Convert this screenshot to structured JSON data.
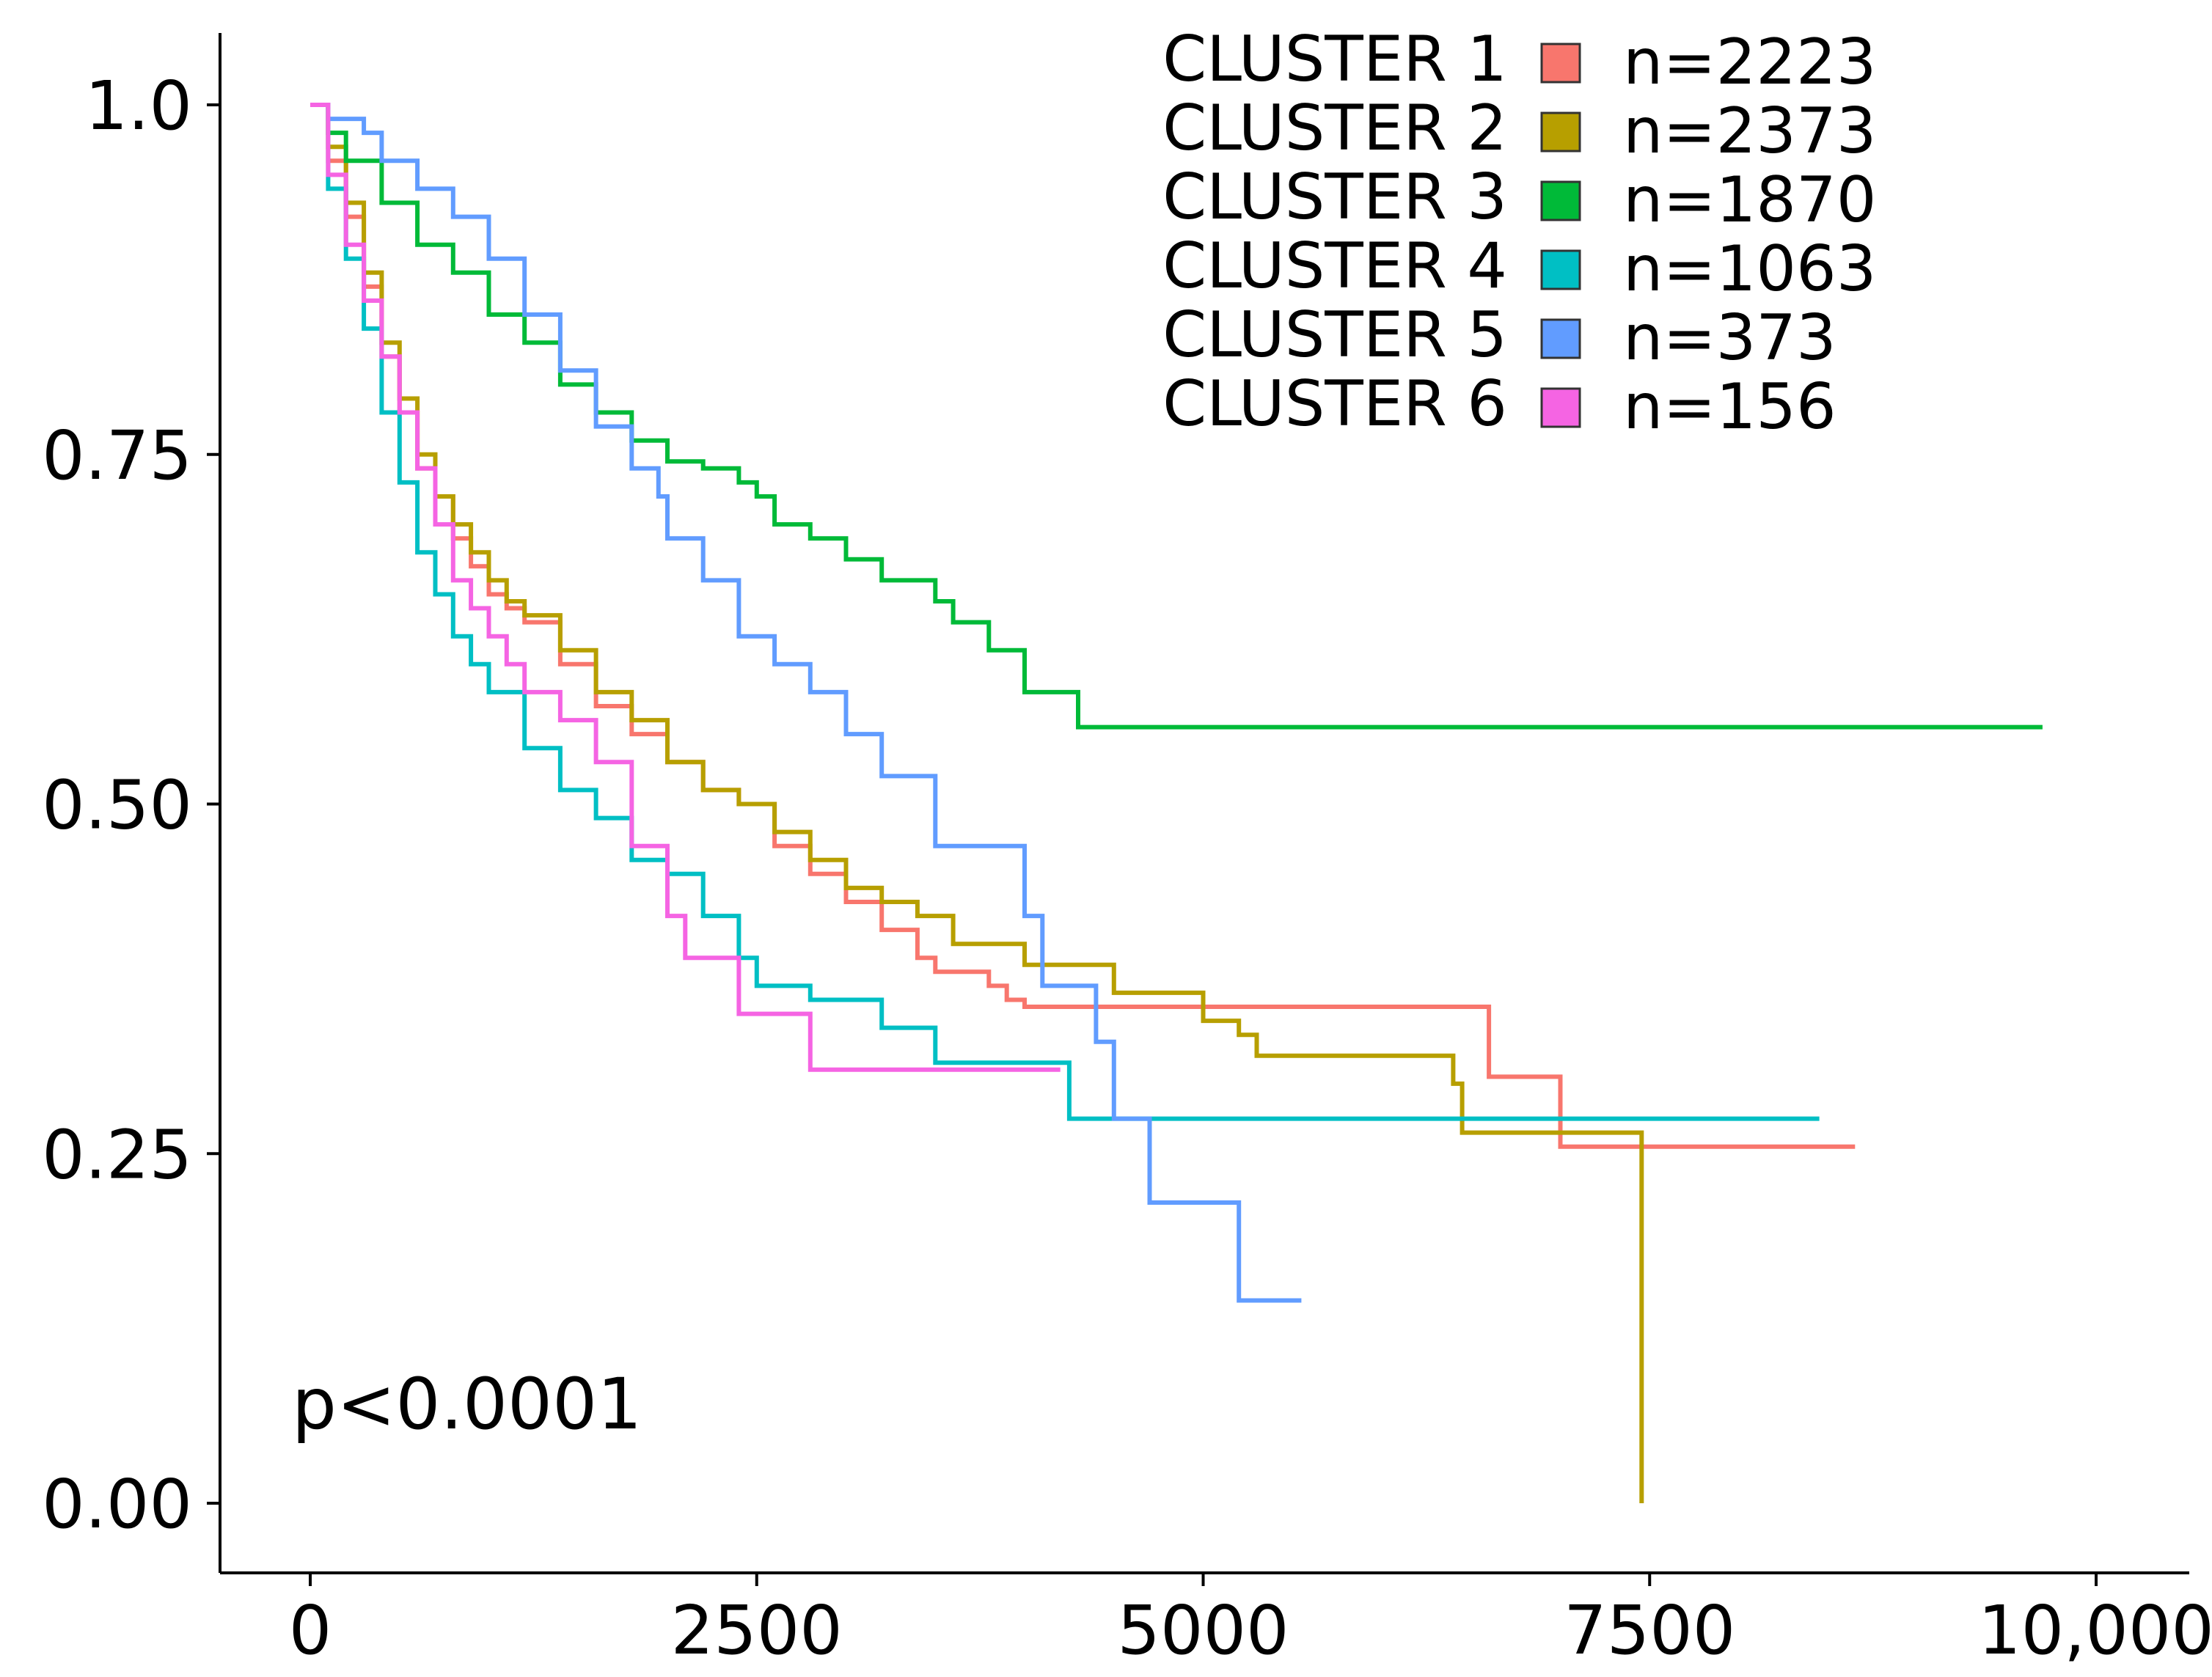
{
  "chart_data": {
    "type": "line",
    "title": "",
    "xlabel": "",
    "ylabel": "",
    "xlim": [
      -500,
      10500
    ],
    "ylim": [
      -0.1,
      1.05
    ],
    "x_ticks": [
      0,
      2500,
      5000,
      7500,
      10000
    ],
    "x_tick_labels": [
      "0",
      "2500",
      "5000",
      "7500",
      "10,000"
    ],
    "y_ticks": [
      0,
      0.25,
      0.5,
      0.75,
      1.0
    ],
    "y_tick_labels": [
      "0.00",
      "0.25",
      "0.50",
      "0.75",
      "1.0"
    ],
    "grid": false,
    "legend_position": "top-right",
    "annotation": "p<0.0001",
    "series": [
      {
        "name": "CLUSTER 1",
        "count_label": "n=2223",
        "color": "#F8766D",
        "x": [
          0,
          100,
          200,
          300,
          400,
          500,
          600,
          700,
          800,
          900,
          1000,
          1100,
          1200,
          1400,
          1600,
          1800,
          2000,
          2200,
          2400,
          2600,
          2800,
          3000,
          3200,
          3400,
          3500,
          3800,
          3900,
          4000,
          6600,
          7000,
          8650
        ],
        "y": [
          1.0,
          0.96,
          0.92,
          0.87,
          0.82,
          0.78,
          0.74,
          0.72,
          0.69,
          0.67,
          0.65,
          0.64,
          0.63,
          0.6,
          0.57,
          0.55,
          0.53,
          0.51,
          0.5,
          0.47,
          0.45,
          0.43,
          0.41,
          0.39,
          0.38,
          0.37,
          0.36,
          0.355,
          0.305,
          0.255,
          0.255
        ]
      },
      {
        "name": "CLUSTER 2",
        "count_label": "n=2373",
        "color": "#B79F00",
        "x": [
          0,
          100,
          200,
          300,
          400,
          500,
          600,
          700,
          800,
          900,
          1000,
          1100,
          1200,
          1400,
          1600,
          1800,
          2000,
          2200,
          2400,
          2600,
          2800,
          3000,
          3200,
          3400,
          3600,
          4000,
          4500,
          5000,
          5200,
          5300,
          6400,
          6450,
          7450,
          7455
        ],
        "y": [
          1.0,
          0.97,
          0.93,
          0.88,
          0.83,
          0.79,
          0.75,
          0.72,
          0.7,
          0.68,
          0.66,
          0.645,
          0.635,
          0.61,
          0.58,
          0.56,
          0.53,
          0.51,
          0.5,
          0.48,
          0.46,
          0.44,
          0.43,
          0.42,
          0.4,
          0.385,
          0.365,
          0.345,
          0.335,
          0.32,
          0.3,
          0.265,
          0.265,
          0.0
        ]
      },
      {
        "name": "CLUSTER 3",
        "count_label": "n=1870",
        "color": "#00BA38",
        "x": [
          0,
          100,
          200,
          400,
          600,
          800,
          1000,
          1200,
          1400,
          1600,
          1800,
          2000,
          2200,
          2400,
          2500,
          2600,
          2800,
          3000,
          3200,
          3500,
          3600,
          3800,
          4000,
          4300,
          9700
        ],
        "y": [
          1.0,
          0.98,
          0.96,
          0.93,
          0.9,
          0.88,
          0.85,
          0.83,
          0.8,
          0.78,
          0.76,
          0.745,
          0.74,
          0.73,
          0.72,
          0.7,
          0.69,
          0.675,
          0.66,
          0.645,
          0.63,
          0.61,
          0.58,
          0.555,
          0.555
        ]
      },
      {
        "name": "CLUSTER 4",
        "count_label": "n=1063",
        "color": "#00BFC4",
        "x": [
          0,
          100,
          200,
          300,
          400,
          500,
          600,
          700,
          800,
          900,
          1000,
          1200,
          1400,
          1600,
          1800,
          2000,
          2200,
          2400,
          2500,
          2800,
          3200,
          3500,
          4250,
          8450
        ],
        "y": [
          1.0,
          0.94,
          0.89,
          0.84,
          0.78,
          0.73,
          0.68,
          0.65,
          0.62,
          0.6,
          0.58,
          0.54,
          0.51,
          0.49,
          0.46,
          0.45,
          0.42,
          0.39,
          0.37,
          0.36,
          0.34,
          0.315,
          0.275,
          0.275
        ]
      },
      {
        "name": "CLUSTER 5",
        "count_label": "n=373",
        "color": "#619CFF",
        "x": [
          0,
          100,
          300,
          400,
          600,
          800,
          1000,
          1200,
          1400,
          1600,
          1800,
          1950,
          2000,
          2200,
          2400,
          2600,
          2800,
          3000,
          3200,
          3500,
          4000,
          4100,
          4400,
          4500,
          4700,
          5200,
          5550
        ],
        "y": [
          1.0,
          0.99,
          0.98,
          0.96,
          0.94,
          0.92,
          0.89,
          0.85,
          0.81,
          0.77,
          0.74,
          0.72,
          0.69,
          0.66,
          0.62,
          0.6,
          0.58,
          0.55,
          0.52,
          0.47,
          0.42,
          0.37,
          0.33,
          0.275,
          0.215,
          0.145,
          0.145
        ]
      },
      {
        "name": "CLUSTER 6",
        "count_label": "n=156",
        "color": "#F564E3",
        "x": [
          0,
          100,
          200,
          300,
          400,
          500,
          600,
          700,
          800,
          900,
          1000,
          1100,
          1200,
          1400,
          1600,
          1800,
          2000,
          2100,
          2400,
          2800,
          4200
        ],
        "y": [
          1.0,
          0.95,
          0.9,
          0.86,
          0.82,
          0.78,
          0.74,
          0.7,
          0.66,
          0.64,
          0.62,
          0.6,
          0.58,
          0.56,
          0.53,
          0.47,
          0.42,
          0.39,
          0.35,
          0.31,
          0.31
        ]
      }
    ]
  }
}
